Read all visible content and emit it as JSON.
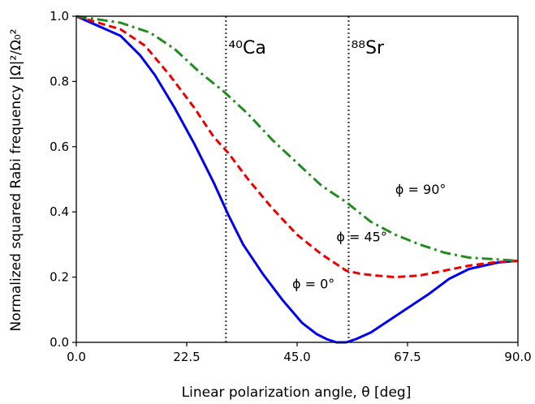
{
  "chart_data": {
    "type": "line",
    "xlabel": "Linear polarization angle, θ [deg]",
    "ylabel": "Normalized squared Rabi frequency |Ω|²/Ω₀²",
    "xlim": [
      0,
      90
    ],
    "ylim": [
      0,
      1.0
    ],
    "x_ticks": [
      "0.0",
      "22.5",
      "45.0",
      "67.5",
      "90.0"
    ],
    "y_ticks": [
      "0.0",
      "0.2",
      "0.4",
      "0.6",
      "0.8",
      "1.0"
    ],
    "grid": false,
    "legend": "none",
    "series": [
      {
        "name": "ϕ = 0°",
        "color": "#0000ee",
        "style": "solid",
        "x": [
          0,
          9,
          13,
          16,
          20,
          24,
          28,
          31,
          34,
          38,
          42,
          46,
          49,
          51,
          53,
          55,
          57,
          60,
          63,
          67,
          72,
          76,
          80,
          83,
          86,
          90
        ],
        "y": [
          1.0,
          0.94,
          0.88,
          0.82,
          0.72,
          0.61,
          0.49,
          0.39,
          0.3,
          0.21,
          0.13,
          0.06,
          0.025,
          0.01,
          0.0,
          0.0,
          0.01,
          0.03,
          0.06,
          0.1,
          0.15,
          0.195,
          0.225,
          0.235,
          0.245,
          0.25
        ]
      },
      {
        "name": "ϕ = 45°",
        "color": "#ee0000",
        "style": "dashed",
        "x": [
          0,
          9,
          14,
          19,
          24,
          28,
          31,
          35,
          40,
          45,
          50,
          55,
          58,
          61,
          65,
          70,
          75,
          80,
          85,
          90
        ],
        "y": [
          1.0,
          0.96,
          0.91,
          0.82,
          0.72,
          0.63,
          0.58,
          0.5,
          0.41,
          0.33,
          0.27,
          0.22,
          0.21,
          0.205,
          0.2,
          0.205,
          0.22,
          0.235,
          0.245,
          0.25
        ]
      },
      {
        "name": "ϕ = 90°",
        "color": "#228b22",
        "style": "dashdot",
        "x": [
          0,
          9,
          15,
          20,
          25,
          30,
          35,
          40,
          45,
          50,
          55,
          60,
          65,
          70,
          75,
          80,
          85,
          90
        ],
        "y": [
          1.0,
          0.98,
          0.95,
          0.9,
          0.83,
          0.77,
          0.7,
          0.62,
          0.55,
          0.48,
          0.43,
          0.37,
          0.33,
          0.3,
          0.275,
          0.26,
          0.255,
          0.25
        ]
      }
    ],
    "vlines": [
      {
        "x": 30.5,
        "label": "⁴⁰Ca",
        "style": "dotted",
        "color": "#444444"
      },
      {
        "x": 55.5,
        "label": "⁸⁸Sr",
        "style": "dotted",
        "color": "#444444"
      }
    ],
    "annotations": [
      {
        "text": "ϕ = 0°",
        "x": 44,
        "y": 0.165
      },
      {
        "text": "ϕ = 45°",
        "x": 53,
        "y": 0.31
      },
      {
        "text": "ϕ = 90°",
        "x": 65,
        "y": 0.455
      }
    ]
  }
}
